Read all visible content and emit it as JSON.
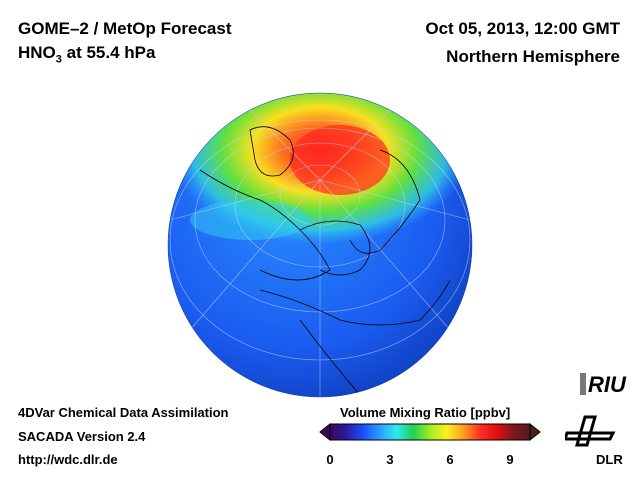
{
  "header": {
    "title": "GOME–2 / MetOp Forecast",
    "species_main": "HNO",
    "species_sub": "3",
    "level": " at 55.4 hPa",
    "datetime": "Oct 05, 2013, 12:00 GMT",
    "region": "Northern Hemisphere"
  },
  "footer": {
    "line1": "4DVar Chemical Data Assimilation",
    "line2": "SACADA Version 2.4",
    "url": "http://wdc.dlr.de"
  },
  "colorbar": {
    "title": "Volume Mixing Ratio [ppbv]",
    "min": 0,
    "max": 10,
    "ticks": [
      "0",
      "3",
      "6",
      "9"
    ],
    "colors": [
      "#3a0a5a",
      "#2a1aa0",
      "#1a50ff",
      "#2aa0ff",
      "#30e8f0",
      "#20d050",
      "#a0ee20",
      "#f8f020",
      "#ffa020",
      "#ff3020",
      "#e01010",
      "#801818",
      "#4a2020"
    ]
  },
  "logos": {
    "riu": "RIU",
    "dlr": "DLR"
  }
}
